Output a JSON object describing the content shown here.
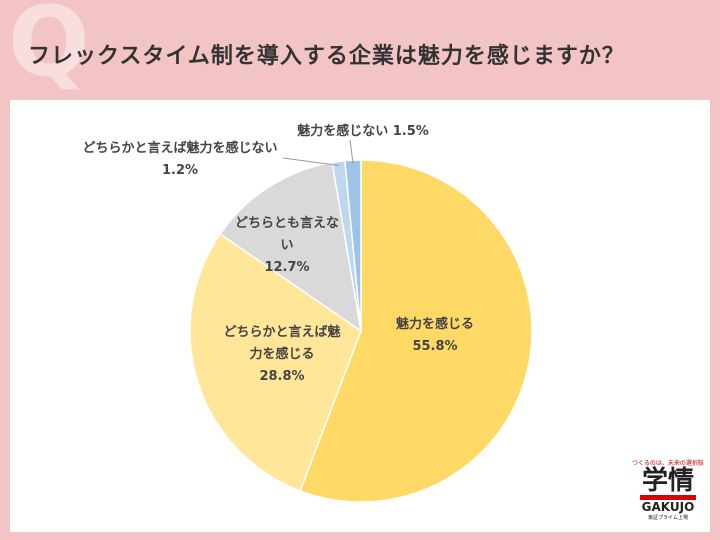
{
  "chart_data": {
    "type": "pie",
    "title": "フレックスタイム制を導入する企業は魅力を感じますか？",
    "categories": [
      "魅力を感じる",
      "どちらかと言えば魅力を感じる",
      "どちらとも言えない",
      "どちらかと言えば魅力を感じない",
      "魅力を感じない"
    ],
    "values": [
      55.8,
      28.8,
      12.7,
      1.2,
      1.5
    ],
    "value_labels": [
      "55.8%",
      "28.8%",
      "12.7%",
      "1.2%",
      "1.5%"
    ],
    "colors": [
      "#ffd966",
      "#ffe699",
      "#d9d9d9",
      "#bdd7ee",
      "#9dc3e6"
    ]
  },
  "logo": {
    "tagline": "つくるのは、未来の選択肢",
    "name": "学情",
    "roman": "GAKUJO",
    "note": "東証プライム上場"
  }
}
